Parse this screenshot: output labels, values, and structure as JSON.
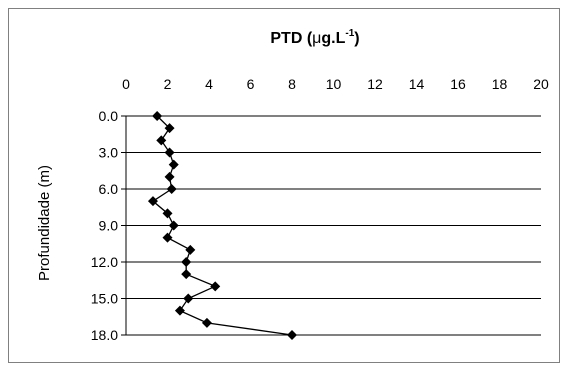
{
  "chart_data": {
    "type": "line",
    "title_main": "PTD (",
    "title_mu": "μ",
    "title_unit": "g.L",
    "title_exp": "-1",
    "title_close": ")",
    "ylabel": "Profundidade (m)",
    "xlabel": "",
    "xlim": [
      0,
      20
    ],
    "ylim": [
      0,
      18
    ],
    "y_reversed": true,
    "x_ticks": [
      "0",
      "2",
      "4",
      "6",
      "8",
      "10",
      "12",
      "14",
      "16",
      "18",
      "20"
    ],
    "y_ticks": [
      "0.0",
      "3.0",
      "6.0",
      "9.0",
      "12.0",
      "15.0",
      "18.0"
    ],
    "x_axis_position": "top",
    "grid": "horizontal",
    "series": [
      {
        "marker": "diamond",
        "color": "#000000",
        "points": [
          {
            "x": 1.5,
            "y": 0
          },
          {
            "x": 2.1,
            "y": 1
          },
          {
            "x": 1.7,
            "y": 2
          },
          {
            "x": 2.1,
            "y": 3
          },
          {
            "x": 2.3,
            "y": 4
          },
          {
            "x": 2.1,
            "y": 5
          },
          {
            "x": 2.2,
            "y": 6
          },
          {
            "x": 1.3,
            "y": 7
          },
          {
            "x": 2.0,
            "y": 8
          },
          {
            "x": 2.3,
            "y": 9
          },
          {
            "x": 2.0,
            "y": 10
          },
          {
            "x": 3.1,
            "y": 11
          },
          {
            "x": 2.9,
            "y": 12
          },
          {
            "x": 2.9,
            "y": 13
          },
          {
            "x": 4.3,
            "y": 14
          },
          {
            "x": 3.0,
            "y": 15
          },
          {
            "x": 2.6,
            "y": 16
          },
          {
            "x": 3.9,
            "y": 17
          },
          {
            "x": 8.0,
            "y": 18
          }
        ]
      }
    ]
  }
}
